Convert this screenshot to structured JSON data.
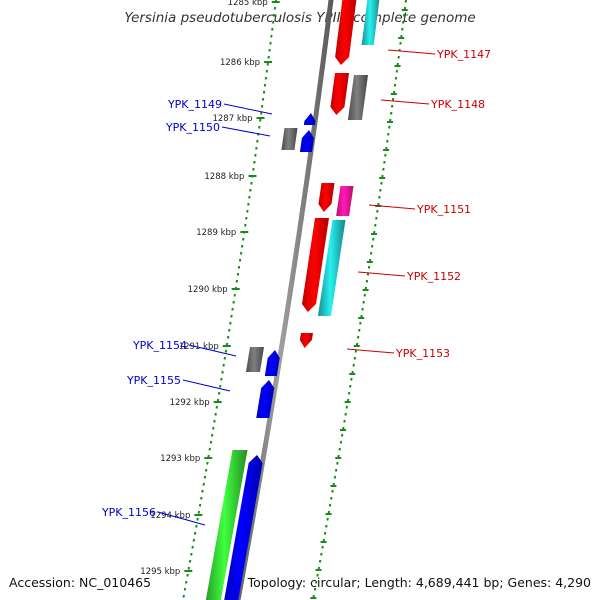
{
  "header": {
    "title": "Yersinia pseudotuberculosis YPIII, complete genome"
  },
  "footer": {
    "accession": "Accession: NC_010465",
    "topology": "Topology: circular; Length: 4,689,441 bp; Genes: 4,290"
  },
  "colors": {
    "backbone": "#808080",
    "tick": "#1a8a1a",
    "forward_gene": "#ff0000",
    "reverse_gene": "#0000ff",
    "rna_gene": "#33cc33",
    "cds_grey": "#666666",
    "cds_magenta": "#ff1493",
    "cds_cyan": "#20c0c0",
    "label_red": "#cc0000",
    "label_blue": "#0000cc"
  },
  "scale_labels": [
    "1285 kbp",
    "1286 kbp",
    "1287 kbp",
    "1288 kbp",
    "1289 kbp",
    "1290 kbp",
    "1291 kbp",
    "1292 kbp",
    "1293 kbp",
    "1294 kbp",
    "1295 kbp"
  ],
  "genes": [
    {
      "label": "YPK_1147",
      "side": "right"
    },
    {
      "label": "YPK_1148",
      "side": "right"
    },
    {
      "label": "YPK_1149",
      "side": "left"
    },
    {
      "label": "YPK_1150",
      "side": "left"
    },
    {
      "label": "YPK_1151",
      "side": "right"
    },
    {
      "label": "YPK_1152",
      "side": "right"
    },
    {
      "label": "YPK_1153",
      "side": "right"
    },
    {
      "label": "YPK_1154",
      "side": "left"
    },
    {
      "label": "YPK_1155",
      "side": "left"
    },
    {
      "label": "YPK_1156",
      "side": "left"
    }
  ]
}
